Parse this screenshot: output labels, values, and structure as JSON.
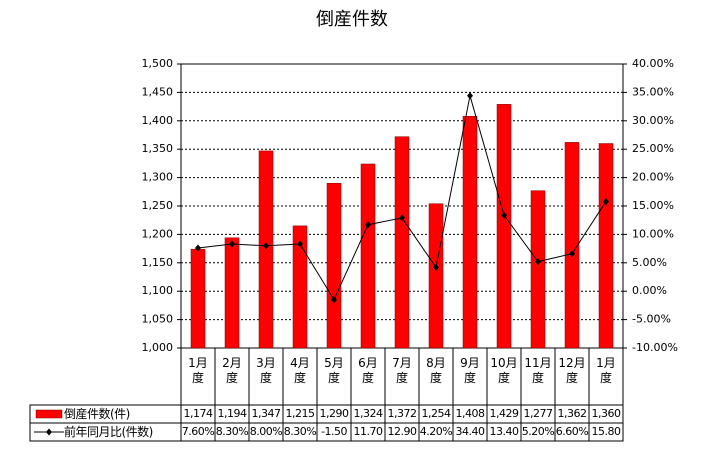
{
  "chart_data": {
    "type": "bar-line",
    "title": "倒産件数",
    "categories": [
      "1月度",
      "2月度",
      "3月度",
      "4月度",
      "5月度",
      "6月度",
      "7月度",
      "8月度",
      "9月度",
      "10月度",
      "11月度",
      "12月度",
      "1月度"
    ],
    "series": [
      {
        "name": "倒産件数(件)",
        "type": "bar",
        "color": "#ff0000",
        "values": [
          1174,
          1194,
          1347,
          1215,
          1290,
          1324,
          1372,
          1254,
          1408,
          1429,
          1277,
          1362,
          1360
        ],
        "value_labels": [
          "1,174",
          "1,194",
          "1,347",
          "1,215",
          "1,290",
          "1,324",
          "1,372",
          "1,254",
          "1,408",
          "1,429",
          "1,277",
          "1,362",
          "1,360"
        ]
      },
      {
        "name": "前年同月比(件数)",
        "type": "line",
        "axis": "y2",
        "color": "#000000",
        "values": [
          7.6,
          8.3,
          8.0,
          8.3,
          -1.5,
          11.7,
          12.9,
          4.2,
          34.4,
          13.4,
          5.2,
          6.6,
          15.8
        ],
        "value_labels": [
          "7.60%",
          "8.30%",
          "8.00%",
          "8.30%",
          "-1.50",
          "11.70",
          "12.90",
          "4.20%",
          "34.40",
          "13.40",
          "5.20%",
          "6.60%",
          "15.80"
        ]
      }
    ],
    "ylim": [
      1000,
      1500
    ],
    "yticks": [
      {
        "value": 1000,
        "label": "1,000"
      },
      {
        "value": 1050,
        "label": "1,050"
      },
      {
        "value": 1100,
        "label": "1,100"
      },
      {
        "value": 1150,
        "label": "1,150"
      },
      {
        "value": 1200,
        "label": "1,200"
      },
      {
        "value": 1250,
        "label": "1,250"
      },
      {
        "value": 1300,
        "label": "1,300"
      },
      {
        "value": 1350,
        "label": "1,350"
      },
      {
        "value": 1400,
        "label": "1,400"
      },
      {
        "value": 1450,
        "label": "1,450"
      },
      {
        "value": 1500,
        "label": "1,500"
      }
    ],
    "y2lim": [
      -10,
      40
    ],
    "y2ticks": [
      {
        "value": -10,
        "label": "-10.00%"
      },
      {
        "value": -5,
        "label": "-5.00%"
      },
      {
        "value": 0,
        "label": "0.00%"
      },
      {
        "value": 5,
        "label": "5.00%"
      },
      {
        "value": 10,
        "label": "10.00%"
      },
      {
        "value": 15,
        "label": "15.00%"
      },
      {
        "value": 20,
        "label": "20.00%"
      },
      {
        "value": 25,
        "label": "25.00%"
      },
      {
        "value": 30,
        "label": "30.00%"
      },
      {
        "value": 35,
        "label": "35.00%"
      },
      {
        "value": 40,
        "label": "40.00%"
      }
    ],
    "grid": true
  }
}
